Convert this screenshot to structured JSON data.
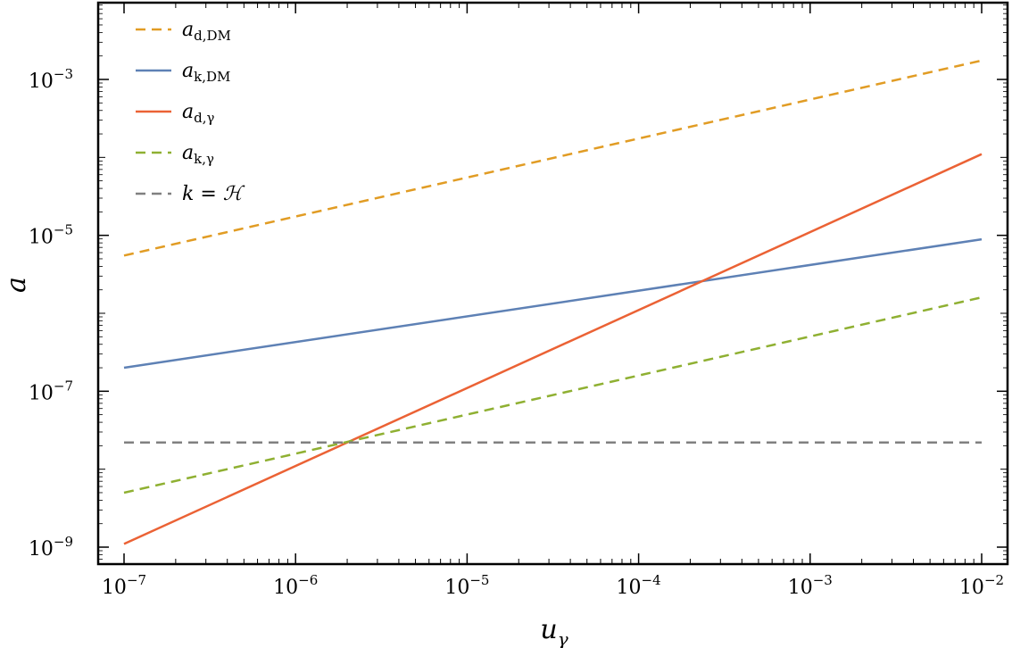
{
  "chart_data": {
    "type": "line",
    "x_scale": "log",
    "y_scale": "log",
    "xlim": [
      1e-07,
      0.01
    ],
    "ylim": [
      1e-09,
      0.001
    ],
    "xlabel": "u",
    "xlabel_sub": "γ",
    "ylabel": "a",
    "x_ticks": [
      {
        "value": 1e-07,
        "base": "10",
        "exp": "−7"
      },
      {
        "value": 1e-06,
        "base": "10",
        "exp": "−6"
      },
      {
        "value": 1e-05,
        "base": "10",
        "exp": "−5"
      },
      {
        "value": 0.0001,
        "base": "10",
        "exp": "−4"
      },
      {
        "value": 0.001,
        "base": "10",
        "exp": "−3"
      },
      {
        "value": 0.01,
        "base": "10",
        "exp": "−2"
      }
    ],
    "y_ticks": [
      {
        "value": 1e-09,
        "base": "10",
        "exp": "−9"
      },
      {
        "value": 1e-07,
        "base": "10",
        "exp": "−7"
      },
      {
        "value": 1e-05,
        "base": "10",
        "exp": "−5"
      },
      {
        "value": 0.001,
        "base": "10",
        "exp": "−3"
      }
    ],
    "grid": false,
    "legend_position": "top-left",
    "series": [
      {
        "name": "a",
        "sub": "d,DM",
        "style": "dashed",
        "color": "#E19C24",
        "x": [
          1e-07,
          0.01
        ],
        "y": [
          5.5e-06,
          0.00175
        ]
      },
      {
        "name": "a",
        "sub": "k,DM",
        "style": "solid",
        "color": "#5E81B5",
        "x": [
          1e-07,
          0.01
        ],
        "y": [
          2e-07,
          8.9e-06
        ]
      },
      {
        "name": "a",
        "sub": "d,γ",
        "style": "solid",
        "color": "#EB6235",
        "x": [
          1e-07,
          0.01
        ],
        "y": [
          1.1e-09,
          0.00011
        ]
      },
      {
        "name": "a",
        "sub": "k,γ",
        "style": "dashed",
        "color": "#8FB032",
        "x": [
          1e-07,
          0.01
        ],
        "y": [
          5e-09,
          1.6e-06
        ]
      },
      {
        "name": "k = ℋ",
        "sub": "",
        "style": "dashed",
        "color": "#808080",
        "x": [
          1e-07,
          0.01
        ],
        "y": [
          2.2e-08,
          2.2e-08
        ]
      }
    ]
  }
}
